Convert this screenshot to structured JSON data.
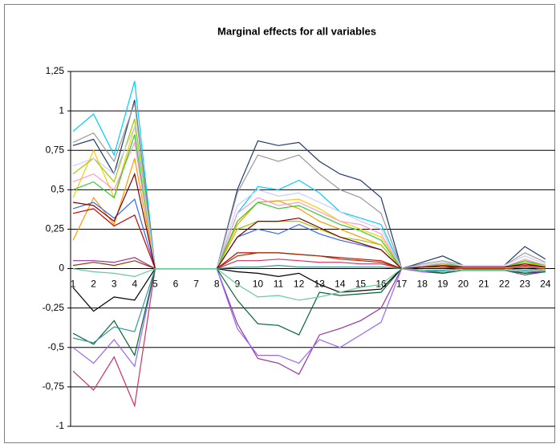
{
  "chart_data": {
    "type": "line",
    "title": "Marginal effects for all variables",
    "categories": [
      1,
      2,
      3,
      4,
      5,
      6,
      7,
      8,
      9,
      10,
      11,
      12,
      13,
      14,
      15,
      16,
      17,
      18,
      19,
      20,
      21,
      22,
      23,
      24
    ],
    "ylim": [
      -1,
      1.25
    ],
    "yticks": [
      {
        "value": 1.25,
        "label": "1,25"
      },
      1,
      {
        "value": 0.75,
        "label": "0,75"
      },
      {
        "value": 0.5,
        "label": "0,5"
      },
      {
        "value": 0.25,
        "label": "0,25"
      },
      0,
      {
        "value": -0.25,
        "label": "-0,25"
      },
      {
        "value": -0.5,
        "label": "-0,5"
      },
      {
        "value": -0.75,
        "label": "-0,75"
      },
      -1
    ],
    "grid": true,
    "series": [
      {
        "color": "#00ccff",
        "values": [
          0.87,
          0.98,
          0.72,
          1.19,
          0,
          0,
          0,
          0,
          0.35,
          0.52,
          0.5,
          0.56,
          0.48,
          0.36,
          0.32,
          0.28,
          0,
          0.02,
          0.03,
          0.01,
          0.01,
          0.01,
          0.02,
          0.01
        ]
      },
      {
        "color": "#1f3a6b",
        "values": [
          0.78,
          0.82,
          0.6,
          1.07,
          0,
          0,
          0,
          0,
          0.5,
          0.81,
          0.78,
          0.8,
          0.68,
          0.6,
          0.56,
          0.45,
          0,
          0.04,
          0.08,
          0.02,
          0.02,
          0.02,
          0.14,
          0.06
        ]
      },
      {
        "color": "#999999",
        "values": [
          0.8,
          0.86,
          0.68,
          1.05,
          0,
          0,
          0,
          0,
          0.48,
          0.72,
          0.68,
          0.72,
          0.6,
          0.5,
          0.45,
          0.35,
          0,
          0.03,
          0.05,
          0.02,
          0.02,
          0.02,
          0.1,
          0.04
        ]
      },
      {
        "color": "#ffcc00",
        "values": [
          0.45,
          0.75,
          0.45,
          0.9,
          0,
          0,
          0,
          0,
          0.3,
          0.42,
          0.43,
          0.44,
          0.38,
          0.3,
          0.25,
          0.2,
          0,
          0.02,
          0.03,
          0.01,
          0.01,
          0.01,
          0.05,
          0.02
        ]
      },
      {
        "color": "#ff9900",
        "values": [
          0.18,
          0.45,
          0.28,
          0.7,
          0,
          0,
          0,
          0,
          0.28,
          0.42,
          0.43,
          0.38,
          0.3,
          0.25,
          0.2,
          0.15,
          0,
          0.01,
          0.02,
          0.01,
          0.01,
          0.01,
          0.04,
          0.01
        ]
      },
      {
        "color": "#3366ff",
        "values": [
          0.38,
          0.42,
          0.32,
          0.44,
          0,
          0,
          0,
          0,
          0.2,
          0.25,
          0.22,
          0.28,
          0.22,
          0.18,
          0.15,
          0.12,
          0,
          0.01,
          0.02,
          0.01,
          0.01,
          0.01,
          0.03,
          0.01
        ]
      },
      {
        "color": "#cc0000",
        "values": [
          0.35,
          0.38,
          0.27,
          0.34,
          0,
          0,
          0,
          0,
          0.1,
          0.1,
          0.1,
          0.09,
          0.08,
          0.07,
          0.06,
          0.05,
          0,
          0.01,
          0.01,
          0.01,
          0.01,
          0.01,
          0.02,
          0.01
        ]
      },
      {
        "color": "#ff99cc",
        "values": [
          0.55,
          0.6,
          0.5,
          0.8,
          0,
          0,
          0,
          0,
          0.35,
          0.45,
          0.4,
          0.42,
          0.36,
          0.3,
          0.28,
          0.22,
          0,
          0.02,
          0.03,
          0.01,
          0.01,
          0.01,
          0.06,
          0.02
        ]
      },
      {
        "color": "#33cc33",
        "values": [
          0.5,
          0.55,
          0.45,
          0.85,
          0,
          0,
          0,
          0,
          0.3,
          0.42,
          0.38,
          0.4,
          0.34,
          0.28,
          0.24,
          0.18,
          0,
          0.02,
          0.04,
          0.01,
          0.01,
          0.01,
          0.05,
          0.02
        ]
      },
      {
        "color": "#993399",
        "values": [
          0.05,
          0.05,
          0.04,
          0.07,
          0,
          0,
          0,
          0,
          -0.35,
          -0.57,
          -0.6,
          -0.67,
          -0.42,
          -0.38,
          -0.33,
          -0.25,
          0,
          -0.02,
          -0.03,
          -0.01,
          -0.01,
          -0.01,
          -0.04,
          -0.02
        ]
      },
      {
        "color": "#9966ff",
        "values": [
          -0.5,
          -0.6,
          -0.45,
          -0.62,
          0,
          0,
          0,
          0,
          -0.38,
          -0.55,
          -0.55,
          -0.6,
          -0.45,
          -0.5,
          -0.42,
          -0.34,
          0,
          -0.02,
          -0.02,
          -0.01,
          -0.01,
          -0.01,
          -0.03,
          -0.01
        ]
      },
      {
        "color": "#cc3366",
        "values": [
          -0.65,
          -0.77,
          -0.56,
          -0.87,
          0,
          0,
          0,
          0,
          0.05,
          0.05,
          0.06,
          0.05,
          0.04,
          0.04,
          0.03,
          0.03,
          0,
          -0.01,
          -0.02,
          -0.01,
          -0.01,
          -0.01,
          -0.02,
          -0.01
        ]
      },
      {
        "color": "#006633",
        "values": [
          -0.41,
          -0.48,
          -0.33,
          -0.55,
          0,
          0,
          0,
          0,
          -0.2,
          -0.35,
          -0.36,
          -0.42,
          -0.15,
          -0.17,
          -0.16,
          -0.15,
          0,
          -0.01,
          -0.03,
          -0.01,
          -0.01,
          -0.01,
          -0.03,
          -0.02
        ]
      },
      {
        "color": "#000000",
        "values": [
          -0.12,
          -0.27,
          -0.18,
          -0.2,
          0,
          0,
          0,
          0,
          -0.02,
          -0.03,
          -0.05,
          -0.03,
          -0.1,
          -0.15,
          -0.14,
          -0.13,
          0,
          -0.01,
          -0.02,
          -0.01,
          -0.01,
          -0.01,
          -0.02,
          -0.01
        ]
      },
      {
        "color": "#339999",
        "values": [
          -0.44,
          -0.47,
          -0.37,
          -0.4,
          0,
          0,
          0,
          0,
          0.01,
          0.01,
          0.02,
          0.01,
          0.01,
          0.01,
          0.01,
          0.01,
          0,
          -0.01,
          -0.01,
          0,
          0,
          0,
          -0.01,
          0
        ]
      },
      {
        "color": "#99cc00",
        "values": [
          0.6,
          0.7,
          0.55,
          0.95,
          0,
          0,
          0,
          0,
          0.25,
          0.3,
          0.3,
          0.3,
          0.25,
          0.2,
          0.18,
          0.15,
          0,
          0.01,
          0.03,
          0.01,
          0.01,
          0.01,
          0.04,
          0.02
        ]
      },
      {
        "color": "#993300",
        "values": [
          0.02,
          0.04,
          0.02,
          0.05,
          0,
          0,
          0,
          0,
          0.08,
          0.1,
          0.1,
          0.09,
          0.08,
          0.06,
          0.05,
          0.04,
          0,
          0.01,
          0.01,
          0,
          0,
          0,
          0.01,
          0
        ]
      },
      {
        "color": "#ccccff",
        "values": [
          0.65,
          0.7,
          0.6,
          0.9,
          0,
          0,
          0,
          0,
          0.4,
          0.5,
          0.46,
          0.48,
          0.42,
          0.36,
          0.3,
          0.25,
          0,
          0.02,
          0.04,
          0.02,
          0.02,
          0.02,
          0.08,
          0.03
        ]
      },
      {
        "color": "#800000",
        "values": [
          0.42,
          0.4,
          0.3,
          0.6,
          0,
          0,
          0,
          0,
          0.2,
          0.3,
          0.3,
          0.32,
          0.26,
          0.2,
          0.16,
          0.12,
          0,
          0.01,
          0.02,
          0.01,
          0.01,
          0.01,
          0.03,
          0.01
        ]
      },
      {
        "color": "#66cc99",
        "values": [
          0,
          -0.02,
          -0.03,
          -0.05,
          0,
          0,
          0,
          0,
          -0.1,
          -0.18,
          -0.17,
          -0.2,
          -0.18,
          -0.15,
          -0.12,
          -0.1,
          0,
          -0.01,
          -0.02,
          -0.01,
          -0.01,
          -0.01,
          -0.02,
          -0.01
        ]
      }
    ]
  }
}
